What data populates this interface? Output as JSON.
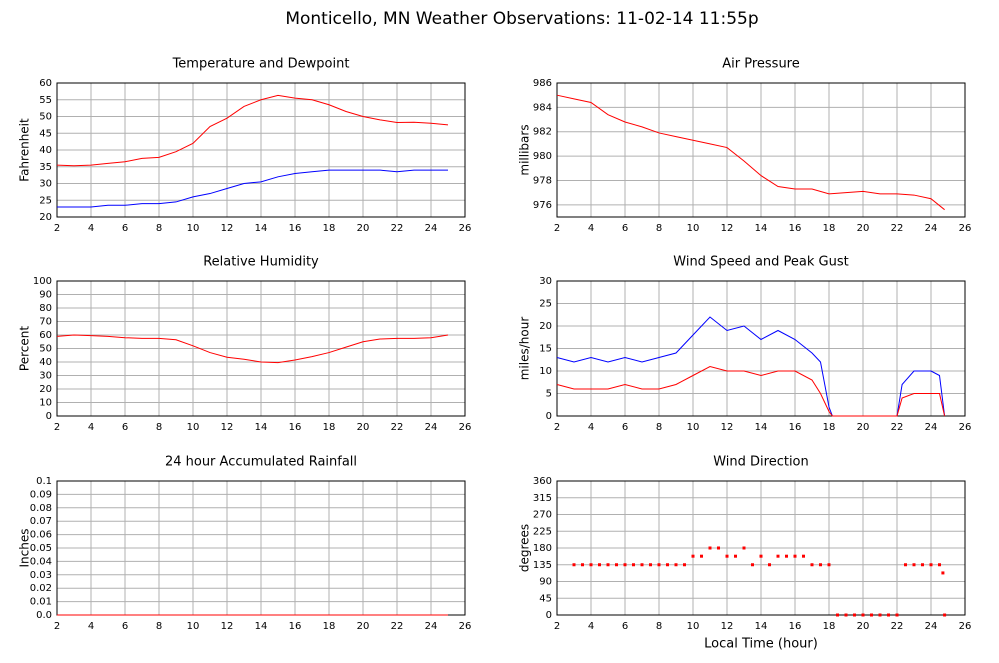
{
  "title": "Monticello, MN Weather Observations: 11-02-14 11:55p",
  "chart_data": [
    {
      "type": "line",
      "title": "Temperature and Dewpoint",
      "ylabel": "Fahrenheit",
      "x": [
        2,
        3,
        4,
        5,
        6,
        7,
        8,
        9,
        10,
        11,
        12,
        13,
        14,
        15,
        16,
        17,
        18,
        19,
        20,
        21,
        22,
        23,
        24,
        25
      ],
      "series": [
        {
          "color": "#ff0000",
          "values": [
            35.5,
            35.3,
            35.5,
            36,
            36.5,
            37.5,
            37.8,
            39.5,
            42,
            47,
            49.5,
            53,
            55,
            56.3,
            55.5,
            55,
            53.5,
            51.5,
            50,
            49,
            48.2,
            48.3,
            48,
            47.5
          ]
        },
        {
          "color": "#0000ff",
          "values": [
            23,
            23,
            23,
            23.5,
            23.5,
            24,
            24,
            24.5,
            26,
            27,
            28.5,
            30,
            30.5,
            32,
            33,
            33.5,
            34,
            34,
            34,
            34,
            33.5,
            34,
            34,
            34
          ]
        }
      ],
      "xlim": [
        2,
        26
      ],
      "xticks": [
        2,
        4,
        6,
        8,
        10,
        12,
        14,
        16,
        18,
        20,
        22,
        24,
        26
      ],
      "ylim": [
        20,
        60
      ],
      "yticks": [
        20,
        25,
        30,
        35,
        40,
        45,
        50,
        55,
        60
      ],
      "grid": true
    },
    {
      "type": "line",
      "title": "Air Pressure",
      "ylabel": "millibars",
      "x": [
        2,
        3,
        4,
        5,
        6,
        7,
        8,
        9,
        10,
        11,
        12,
        13,
        14,
        15,
        16,
        17,
        18,
        19,
        20,
        21,
        22,
        23,
        24,
        24.8
      ],
      "series": [
        {
          "color": "#ff0000",
          "values": [
            985,
            984.7,
            984.4,
            983.4,
            982.8,
            982.4,
            981.9,
            981.6,
            981.3,
            981,
            980.7,
            979.6,
            978.4,
            977.5,
            977.3,
            977.3,
            976.9,
            977,
            977.1,
            976.9,
            976.9,
            976.8,
            976.5,
            975.6
          ]
        }
      ],
      "xlim": [
        2,
        26
      ],
      "xticks": [
        2,
        4,
        6,
        8,
        10,
        12,
        14,
        16,
        18,
        20,
        22,
        24,
        26
      ],
      "ylim": [
        975,
        986
      ],
      "yticks": [
        976,
        978,
        980,
        982,
        984,
        986
      ],
      "grid": true
    },
    {
      "type": "line",
      "title": "Relative Humidity",
      "ylabel": "Percent",
      "x": [
        2,
        3,
        4,
        5,
        6,
        7,
        8,
        9,
        10,
        11,
        12,
        13,
        14,
        15,
        16,
        17,
        18,
        19,
        20,
        21,
        22,
        23,
        24,
        25
      ],
      "series": [
        {
          "color": "#ff0000",
          "values": [
            59,
            60,
            59.5,
            59,
            58,
            57.5,
            57.5,
            56.5,
            52,
            47,
            43.5,
            42,
            40,
            39.5,
            41.5,
            44,
            47,
            51,
            55,
            57,
            57.5,
            57.5,
            58,
            60
          ]
        }
      ],
      "xlim": [
        2,
        26
      ],
      "xticks": [
        2,
        4,
        6,
        8,
        10,
        12,
        14,
        16,
        18,
        20,
        22,
        24,
        26
      ],
      "ylim": [
        0,
        100
      ],
      "yticks": [
        0,
        10,
        20,
        30,
        40,
        50,
        60,
        70,
        80,
        90,
        100
      ],
      "grid": true
    },
    {
      "type": "line",
      "title": "Wind Speed and Peak Gust",
      "ylabel": "miles/hour",
      "x": [
        2,
        3,
        4,
        5,
        6,
        7,
        8,
        9,
        10,
        11,
        12,
        13,
        14,
        15,
        16,
        17,
        17.5,
        18,
        18.2,
        22,
        22.3,
        23,
        24,
        24.5,
        24.8
      ],
      "series": [
        {
          "color": "#0000ff",
          "values": [
            13,
            12,
            13,
            12,
            13,
            12,
            13,
            14,
            18,
            22,
            19,
            20,
            17,
            19,
            17,
            14,
            12,
            2,
            0,
            0,
            7,
            10,
            10,
            9,
            0
          ]
        },
        {
          "color": "#ff0000",
          "values": [
            7,
            6,
            6,
            6,
            7,
            6,
            6,
            7,
            9,
            11,
            10,
            10,
            9,
            10,
            10,
            8,
            5,
            1,
            0,
            0,
            4,
            5,
            5,
            5,
            0
          ]
        }
      ],
      "xlim": [
        2,
        26
      ],
      "xticks": [
        2,
        4,
        6,
        8,
        10,
        12,
        14,
        16,
        18,
        20,
        22,
        24,
        26
      ],
      "ylim": [
        0,
        30
      ],
      "yticks": [
        0,
        5,
        10,
        15,
        20,
        25,
        30
      ],
      "grid": true
    },
    {
      "type": "line",
      "title": "24 hour Accumulated Rainfall",
      "ylabel": "Inches",
      "x": [
        2,
        25
      ],
      "series": [
        {
          "color": "#ff0000",
          "values": [
            0,
            0
          ]
        }
      ],
      "xlim": [
        2,
        26
      ],
      "xticks": [
        2,
        4,
        6,
        8,
        10,
        12,
        14,
        16,
        18,
        20,
        22,
        24,
        26
      ],
      "ylim": [
        0,
        0.1
      ],
      "yticks": [
        {
          "value": 0,
          "label": "0.0"
        },
        0.01,
        0.02,
        0.03,
        0.04,
        0.05,
        0.06,
        0.07,
        0.08,
        0.09,
        0.1
      ],
      "grid": true
    },
    {
      "type": "scatter",
      "title": "Wind Direction",
      "ylabel": "degrees",
      "xlabel": "Local Time (hour)",
      "x": [
        3,
        3.5,
        4,
        4.5,
        5,
        5.5,
        6,
        6.5,
        7,
        7.5,
        8,
        8.5,
        9,
        9.5,
        10,
        10.5,
        11,
        11.5,
        12,
        12.5,
        13,
        13.5,
        14,
        14.5,
        15,
        15.5,
        16,
        16.5,
        17,
        17.5,
        18,
        18.5,
        19,
        19.5,
        20,
        20.5,
        21,
        21.5,
        22,
        22.5,
        23,
        23.5,
        24,
        24.5,
        24.7,
        24.8
      ],
      "series": [
        {
          "color": "#ff0000",
          "values": [
            135,
            135,
            135,
            135,
            135,
            135,
            135,
            135,
            135,
            135,
            135,
            135,
            135,
            135,
            158,
            158,
            180,
            180,
            158,
            158,
            180,
            135,
            158,
            135,
            158,
            158,
            158,
            158,
            135,
            135,
            135,
            0,
            0,
            0,
            0,
            0,
            0,
            0,
            0,
            135,
            135,
            135,
            135,
            135,
            113,
            0
          ]
        }
      ],
      "xlim": [
        2,
        26
      ],
      "xticks": [
        2,
        4,
        6,
        8,
        10,
        12,
        14,
        16,
        18,
        20,
        22,
        24,
        26
      ],
      "ylim": [
        0,
        360
      ],
      "yticks": [
        0,
        45,
        90,
        135,
        180,
        225,
        270,
        315,
        360
      ],
      "grid": true
    }
  ]
}
